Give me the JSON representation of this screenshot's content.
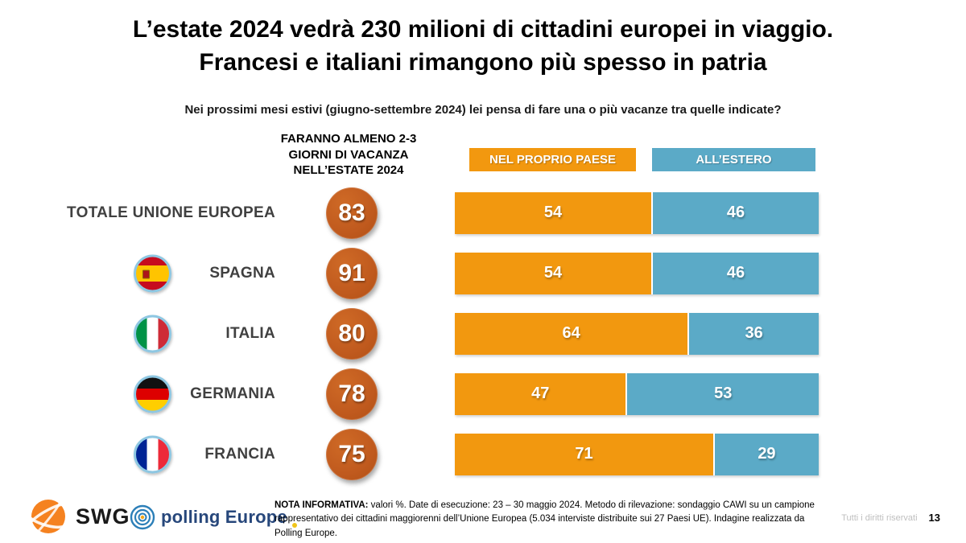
{
  "slide": {
    "title_line1": "L’estate 2024 vedrà 230 milioni di cittadini europei in viaggio.",
    "title_line2": "Francesi e italiani rimangono più spesso in patria",
    "subtitle": "Nei prossimi mesi estivi (giugno-settembre 2024) lei pensa di fare una o più vacanze tra quelle indicate?",
    "rights": "Tutti i diritti riservati",
    "page_number": "13"
  },
  "chart": {
    "badge_header": "FARANNO ALMENO 2-3\nGIORNI DI VACANZA\nNELL’ESTATE 2024",
    "legend": {
      "domestic": "NEL PROPRIO PAESE",
      "abroad": "ALL’ESTERO"
    },
    "colors": {
      "domestic_bar": "#F2980F",
      "abroad_bar": "#5BAAC7",
      "badge_circle": "#C05A1E",
      "flag_ring": "#8EC7E2",
      "label_text": "#404040"
    },
    "rows": [
      {
        "label": "TOTALE UNIONE EUROPEA",
        "flag": "",
        "badge": "83",
        "domestic": 54,
        "abroad": 46
      },
      {
        "label": "SPAGNA",
        "flag": "spain",
        "badge": "91",
        "domestic": 54,
        "abroad": 46
      },
      {
        "label": "ITALIA",
        "flag": "italy",
        "badge": "80",
        "domestic": 64,
        "abroad": 36
      },
      {
        "label": "GERMANIA",
        "flag": "germany",
        "badge": "78",
        "domestic": 47,
        "abroad": 53
      },
      {
        "label": "FRANCIA",
        "flag": "france",
        "badge": "75",
        "domestic": 71,
        "abroad": 29
      }
    ]
  },
  "chart_data": {
    "type": "bar",
    "orientation": "horizontal",
    "stacked": true,
    "title": "L’estate 2024 vedrà 230 milioni di cittadini europei in viaggio. Francesi e italiani rimangono più spesso in patria",
    "subtitle": "Nei prossimi mesi estivi (giugno-settembre 2024) lei pensa di fare una o più vacanze tra quelle indicate?",
    "categories": [
      "TOTALE UNIONE EUROPEA",
      "SPAGNA",
      "ITALIA",
      "GERMANIA",
      "FRANCIA"
    ],
    "badge_series": {
      "name": "FARANNO ALMENO 2-3 GIORNI DI VACANZA NELL’ESTATE 2024",
      "values": [
        83,
        91,
        80,
        78,
        75
      ]
    },
    "series": [
      {
        "name": "NEL PROPRIO PAESE",
        "color": "#F2980F",
        "values": [
          54,
          54,
          64,
          47,
          71
        ]
      },
      {
        "name": "ALL’ESTERO",
        "color": "#5BAAC7",
        "values": [
          46,
          46,
          36,
          53,
          29
        ]
      }
    ],
    "xlim": [
      0,
      100
    ],
    "unit": "%",
    "legend_position": "top",
    "grid": false
  },
  "footer": {
    "swg_text": "SWG",
    "polling_text": "polling Europe",
    "note_label": "NOTA INFORMATIVA:",
    "note_text": " valori %. Date di esecuzione: 23 – 30 maggio 2024. Metodo di rilevazione: sondaggio CAWI su un campione rappresentativo dei cittadini maggiorenni dell’Unione Europea (5.034 interviste distribuite sui 27 Paesi UE). Indagine realizzata da Polling Europe."
  }
}
